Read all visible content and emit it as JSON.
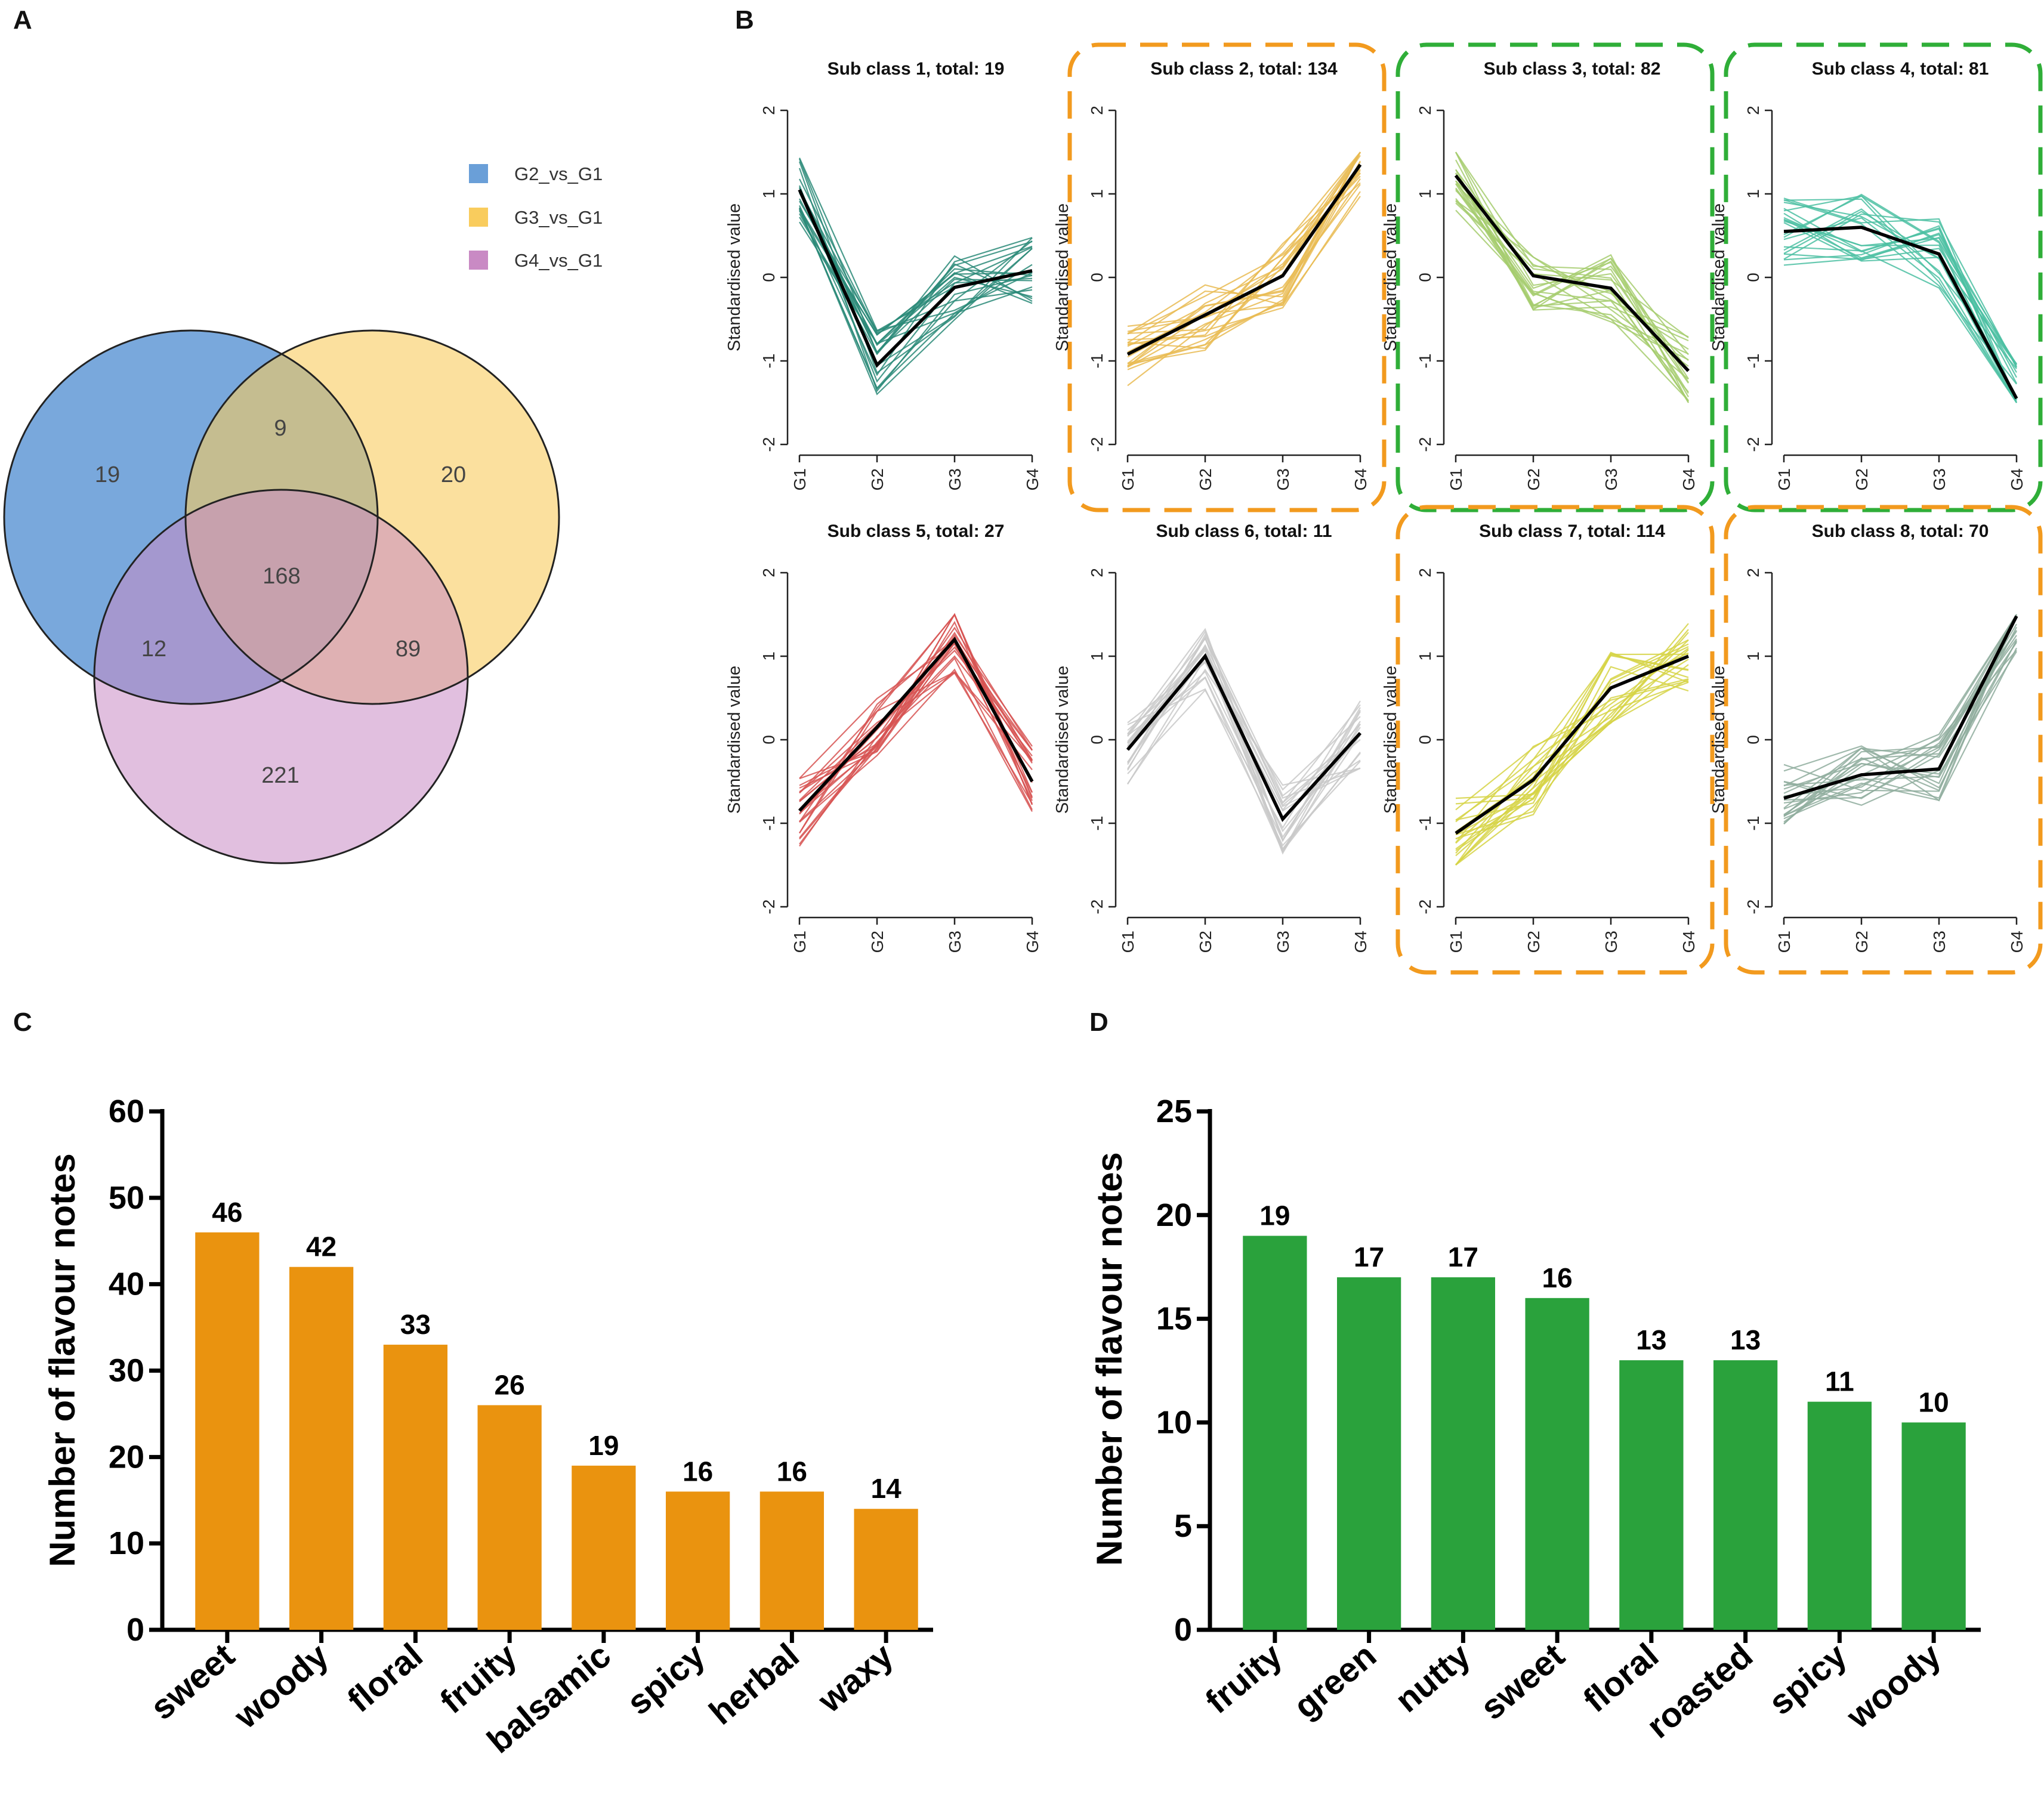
{
  "panels": {
    "A": "A",
    "B": "B",
    "C": "C",
    "D": "D"
  },
  "chart_data": [
    {
      "type": "venn",
      "panel": "A",
      "legend": [
        {
          "label": "G2_vs_G1",
          "color": "#6a9fd8"
        },
        {
          "label": "G3_vs_G1",
          "color": "#f9cc5d"
        },
        {
          "label": "G4_vs_G1",
          "color": "#c98ac4"
        }
      ],
      "regions": [
        {
          "sets": "G2 only",
          "value": "19"
        },
        {
          "sets": "G2&G3",
          "value": "9"
        },
        {
          "sets": "G3 only",
          "value": "20"
        },
        {
          "sets": "G2&G3&G4",
          "value": "168"
        },
        {
          "sets": "G2&G4",
          "value": "12"
        },
        {
          "sets": "G3&G4",
          "value": "89"
        },
        {
          "sets": "G4 only",
          "value": "221"
        }
      ]
    },
    {
      "type": "line",
      "panel": "B",
      "ylabel": "Standardised value",
      "x": [
        "G1",
        "G2",
        "G3",
        "G4"
      ],
      "yticks": [
        "2",
        "1",
        "0",
        "-1",
        "-2"
      ],
      "ylim": [
        -2,
        2
      ],
      "mean_color": "#000000",
      "subplots": [
        {
          "title": "Sub class 1, total: 19",
          "color": "#2a8a78",
          "highlight": "",
          "mean": [
            1.05,
            -1.05,
            -0.12,
            0.08
          ]
        },
        {
          "title": "Sub class 2, total: 134",
          "color": "#e9bb52",
          "highlight": "#f29a1e",
          "mean": [
            -0.92,
            -0.45,
            0.02,
            1.35
          ]
        },
        {
          "title": "Sub class 3, total: 82",
          "color": "#a6cc6f",
          "highlight": "#2fae38",
          "mean": [
            1.22,
            0.02,
            -0.13,
            -1.12
          ]
        },
        {
          "title": "Sub class 4, total: 81",
          "color": "#4bbfa2",
          "highlight": "#2fae38",
          "mean": [
            0.55,
            0.6,
            0.28,
            -1.45
          ]
        },
        {
          "title": "Sub class 5, total: 27",
          "color": "#d75452",
          "highlight": "",
          "mean": [
            -0.85,
            0.15,
            1.2,
            -0.5
          ]
        },
        {
          "title": "Sub class 6, total: 11",
          "color": "#c9c9c9",
          "highlight": "",
          "mean": [
            -0.12,
            1.0,
            -0.95,
            0.08
          ]
        },
        {
          "title": "Sub class 7, total: 114",
          "color": "#d6d445",
          "highlight": "#f29a1e",
          "mean": [
            -1.12,
            -0.48,
            0.62,
            1.0
          ]
        },
        {
          "title": "Sub class 8, total: 70",
          "color": "#8fad9e",
          "highlight": "#f29a1e",
          "mean": [
            -0.7,
            -0.42,
            -0.35,
            1.48
          ]
        }
      ]
    },
    {
      "type": "bar",
      "panel": "C",
      "color": "#ea930f",
      "ylabel": "Number of flavour notes",
      "categories": [
        "sweet",
        "woody",
        "floral",
        "fruity",
        "balsamic",
        "spicy",
        "herbal",
        "waxy"
      ],
      "values": [
        46,
        42,
        33,
        26,
        19,
        16,
        16,
        14
      ],
      "ylim": [
        0,
        60
      ],
      "yticks": [
        "0",
        "10",
        "20",
        "30",
        "40",
        "50",
        "60"
      ]
    },
    {
      "type": "bar",
      "panel": "D",
      "color": "#2aa23c",
      "ylabel": "Number of flavour notes",
      "categories": [
        "fruity",
        "green",
        "nutty",
        "sweet",
        "floral",
        "roasted",
        "spicy",
        "woody"
      ],
      "values": [
        19,
        17,
        17,
        16,
        13,
        13,
        11,
        10
      ],
      "ylim": [
        0,
        25
      ],
      "yticks": [
        "0",
        "5",
        "10",
        "15",
        "20",
        "25"
      ]
    }
  ]
}
